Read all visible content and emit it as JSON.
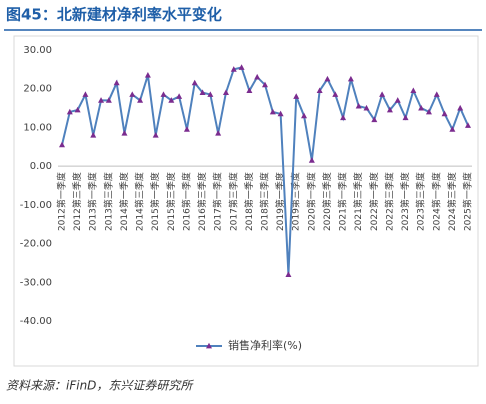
{
  "chart_data": {
    "type": "line",
    "title": "图45：北新建材净利率水平变化",
    "source": "资料来源：iFinD，东兴证券研究所",
    "categories": [
      "2012第一季度",
      null,
      "2012第三季度",
      null,
      "2013第一季度",
      null,
      "2013第三季度",
      null,
      "2014第一季度",
      null,
      "2014第三季度",
      null,
      "2015第一季度",
      null,
      "2015第三季度",
      null,
      "2016第一季度",
      null,
      "2016第三季度",
      null,
      "2017第一季度",
      null,
      "2017第三季度",
      null,
      "2018第一季度",
      null,
      "2018第三季度",
      null,
      "2019第一季度",
      null,
      "2019第三季度",
      null,
      "2020第一季度",
      null,
      "2020第三季度",
      null,
      "2021第一季度",
      null,
      "2021第三季度",
      null,
      "2022第一季度",
      null,
      "2022第三季度",
      null,
      "2023第一季度",
      null,
      "2023第三季度",
      null,
      "2024第一季度",
      null,
      "2024第三季度",
      null,
      "2025第一季度"
    ],
    "series": [
      {
        "name": "销售净利率(%)",
        "color": "#4f81bd",
        "marker_color": "#7b2c8f",
        "values": [
          5.5,
          14,
          14.5,
          18.5,
          8,
          17,
          17,
          21.5,
          8.5,
          18.5,
          17,
          23.5,
          8,
          18.5,
          17,
          18,
          9.5,
          21.5,
          19,
          18.5,
          8.5,
          19,
          25,
          25.5,
          19.5,
          23,
          21,
          14,
          13.5,
          -28,
          18,
          13,
          1.5,
          19.5,
          22.5,
          18.5,
          12.5,
          22.5,
          15.5,
          15,
          12,
          18.5,
          14.5,
          17,
          12.5,
          19.5,
          15,
          14,
          18.5,
          13.5,
          9.5,
          15,
          10.5
        ]
      }
    ],
    "ylim": [
      -40,
      30
    ],
    "yticks": [
      {
        "value": -40,
        "label": "-40.00"
      },
      {
        "value": -30,
        "label": "-30.00"
      },
      {
        "value": -20,
        "label": "-20.00"
      },
      {
        "value": -10,
        "label": "-10.00"
      },
      {
        "value": 0,
        "label": "0.00"
      },
      {
        "value": 10,
        "label": "10.00"
      },
      {
        "value": 20,
        "label": "20.00"
      },
      {
        "value": 30,
        "label": "30.00"
      }
    ],
    "legend": "bottom"
  }
}
